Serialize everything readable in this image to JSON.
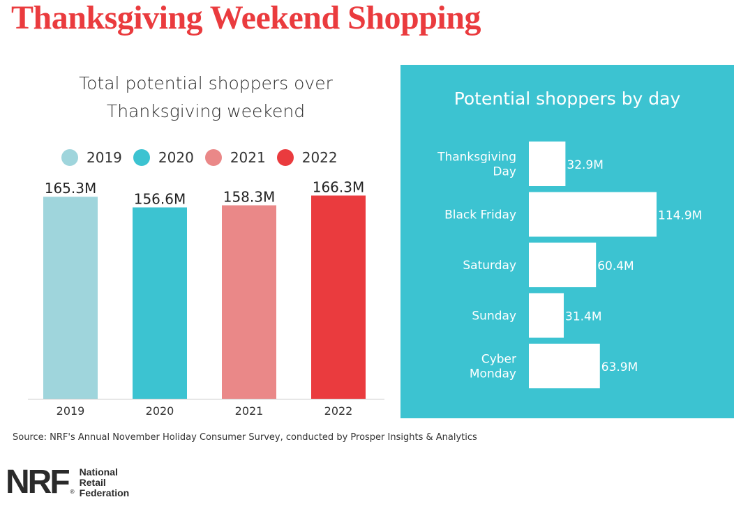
{
  "page": {
    "title": "Thanksgiving Weekend Shopping",
    "source": "Source: NRF's Annual November Holiday Consumer Survey, conducted by Prosper Insights & Analytics"
  },
  "logo": {
    "mark": "NRF",
    "registered": "®",
    "lines": [
      "National",
      "Retail",
      "Federation"
    ]
  },
  "colors": {
    "title": "#ea3b3e",
    "c2019": "#9fd5dc",
    "c2020": "#3cc3d1",
    "c2021": "#ea8888",
    "c2022": "#ea3b3e",
    "panel": "#3cc3d1"
  },
  "chart_data": [
    {
      "type": "bar",
      "title": "Total potential shoppers over Thanksgiving weekend",
      "title_lines": [
        "Total potential shoppers over",
        "Thanksgiving weekend"
      ],
      "categories": [
        "2019",
        "2020",
        "2021",
        "2022"
      ],
      "values": [
        165.3,
        156.6,
        158.3,
        166.3
      ],
      "labels": [
        "165.3M",
        "156.6M",
        "158.3M",
        "166.3M"
      ],
      "legend": [
        "2019",
        "2020",
        "2021",
        "2022"
      ],
      "bar_colors": [
        "#9fd5dc",
        "#3cc3d1",
        "#ea8888",
        "#ea3b3e"
      ],
      "units": "M",
      "ylim": [
        0,
        170
      ]
    },
    {
      "type": "bar",
      "orientation": "horizontal",
      "title": "Potential shoppers by day",
      "categories": [
        "Thanksgiving Day",
        "Black Friday",
        "Saturday",
        "Sunday",
        "Cyber Monday"
      ],
      "category_lines": [
        [
          "Thanksgiving",
          "Day"
        ],
        [
          "Black Friday"
        ],
        [
          "Saturday"
        ],
        [
          "Sunday"
        ],
        [
          "Cyber",
          "Monday"
        ]
      ],
      "values": [
        32.9,
        114.9,
        60.4,
        31.4,
        63.9
      ],
      "labels": [
        "32.9M",
        "114.9M",
        "60.4M",
        "31.4M",
        "63.9M"
      ],
      "units": "M",
      "xlim": [
        0,
        114.9
      ]
    }
  ]
}
